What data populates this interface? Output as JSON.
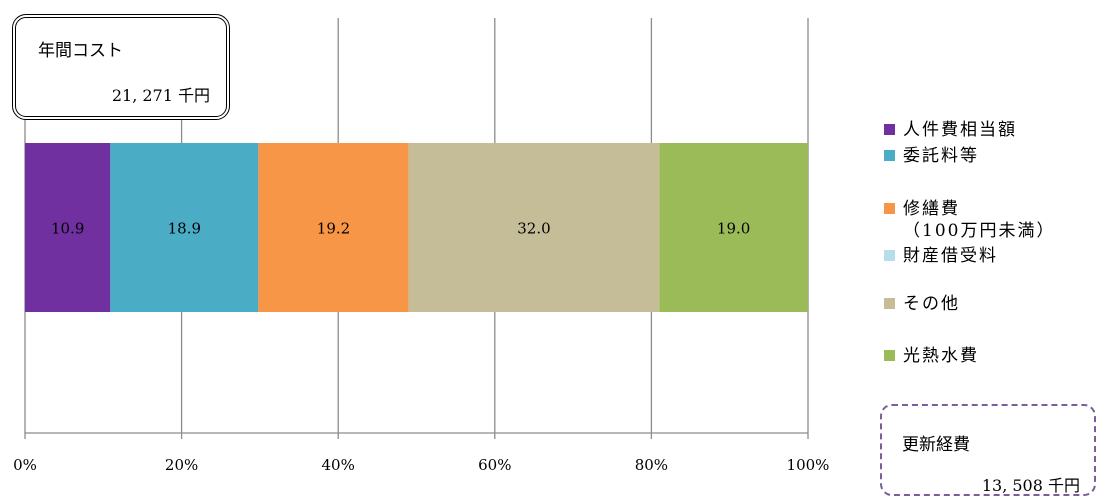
{
  "chart_data": {
    "type": "bar",
    "orientation": "horizontal",
    "stacked": "percent",
    "series": [
      {
        "name": "人件費相当額",
        "color": "#7030a0",
        "value": 10.9,
        "label": "10.9"
      },
      {
        "name": "委託料等",
        "color": "#4bacc6",
        "value": 18.9,
        "label": "18.9"
      },
      {
        "name": "修繕費（100万円未満）",
        "color": "#f79646",
        "value": 19.2,
        "label": "19.2"
      },
      {
        "name": "財産借受料",
        "color": "#b7dee8",
        "value": 0,
        "label": ""
      },
      {
        "name": "その他",
        "color": "#c4bd97",
        "value": 32.0,
        "label": "32.0"
      },
      {
        "name": "光熱水費",
        "color": "#9bbb59",
        "value": 19.0,
        "label": "19.0"
      }
    ],
    "xticks": [
      "0%",
      "20%",
      "40%",
      "60%",
      "80%",
      "100%"
    ],
    "xlim": [
      0,
      100
    ],
    "grid": true,
    "legend_position": "right"
  },
  "cost_box": {
    "title": "年間コスト",
    "value": "21, 271 千円"
  },
  "renewal_box": {
    "title": "更新経費",
    "value": "13, 508 千円"
  },
  "legend": [
    {
      "label": "人件費相当額",
      "color": "#7030a0"
    },
    {
      "label": "委託料等",
      "color": "#4bacc6"
    },
    {
      "label": "修繕費",
      "sub": "（100万円未満）",
      "color": "#f79646"
    },
    {
      "label": "財産借受料",
      "color": "#b7dee8"
    },
    {
      "label": "その他",
      "color": "#c4bd97"
    },
    {
      "label": "光熱水費",
      "color": "#9bbb59"
    }
  ]
}
